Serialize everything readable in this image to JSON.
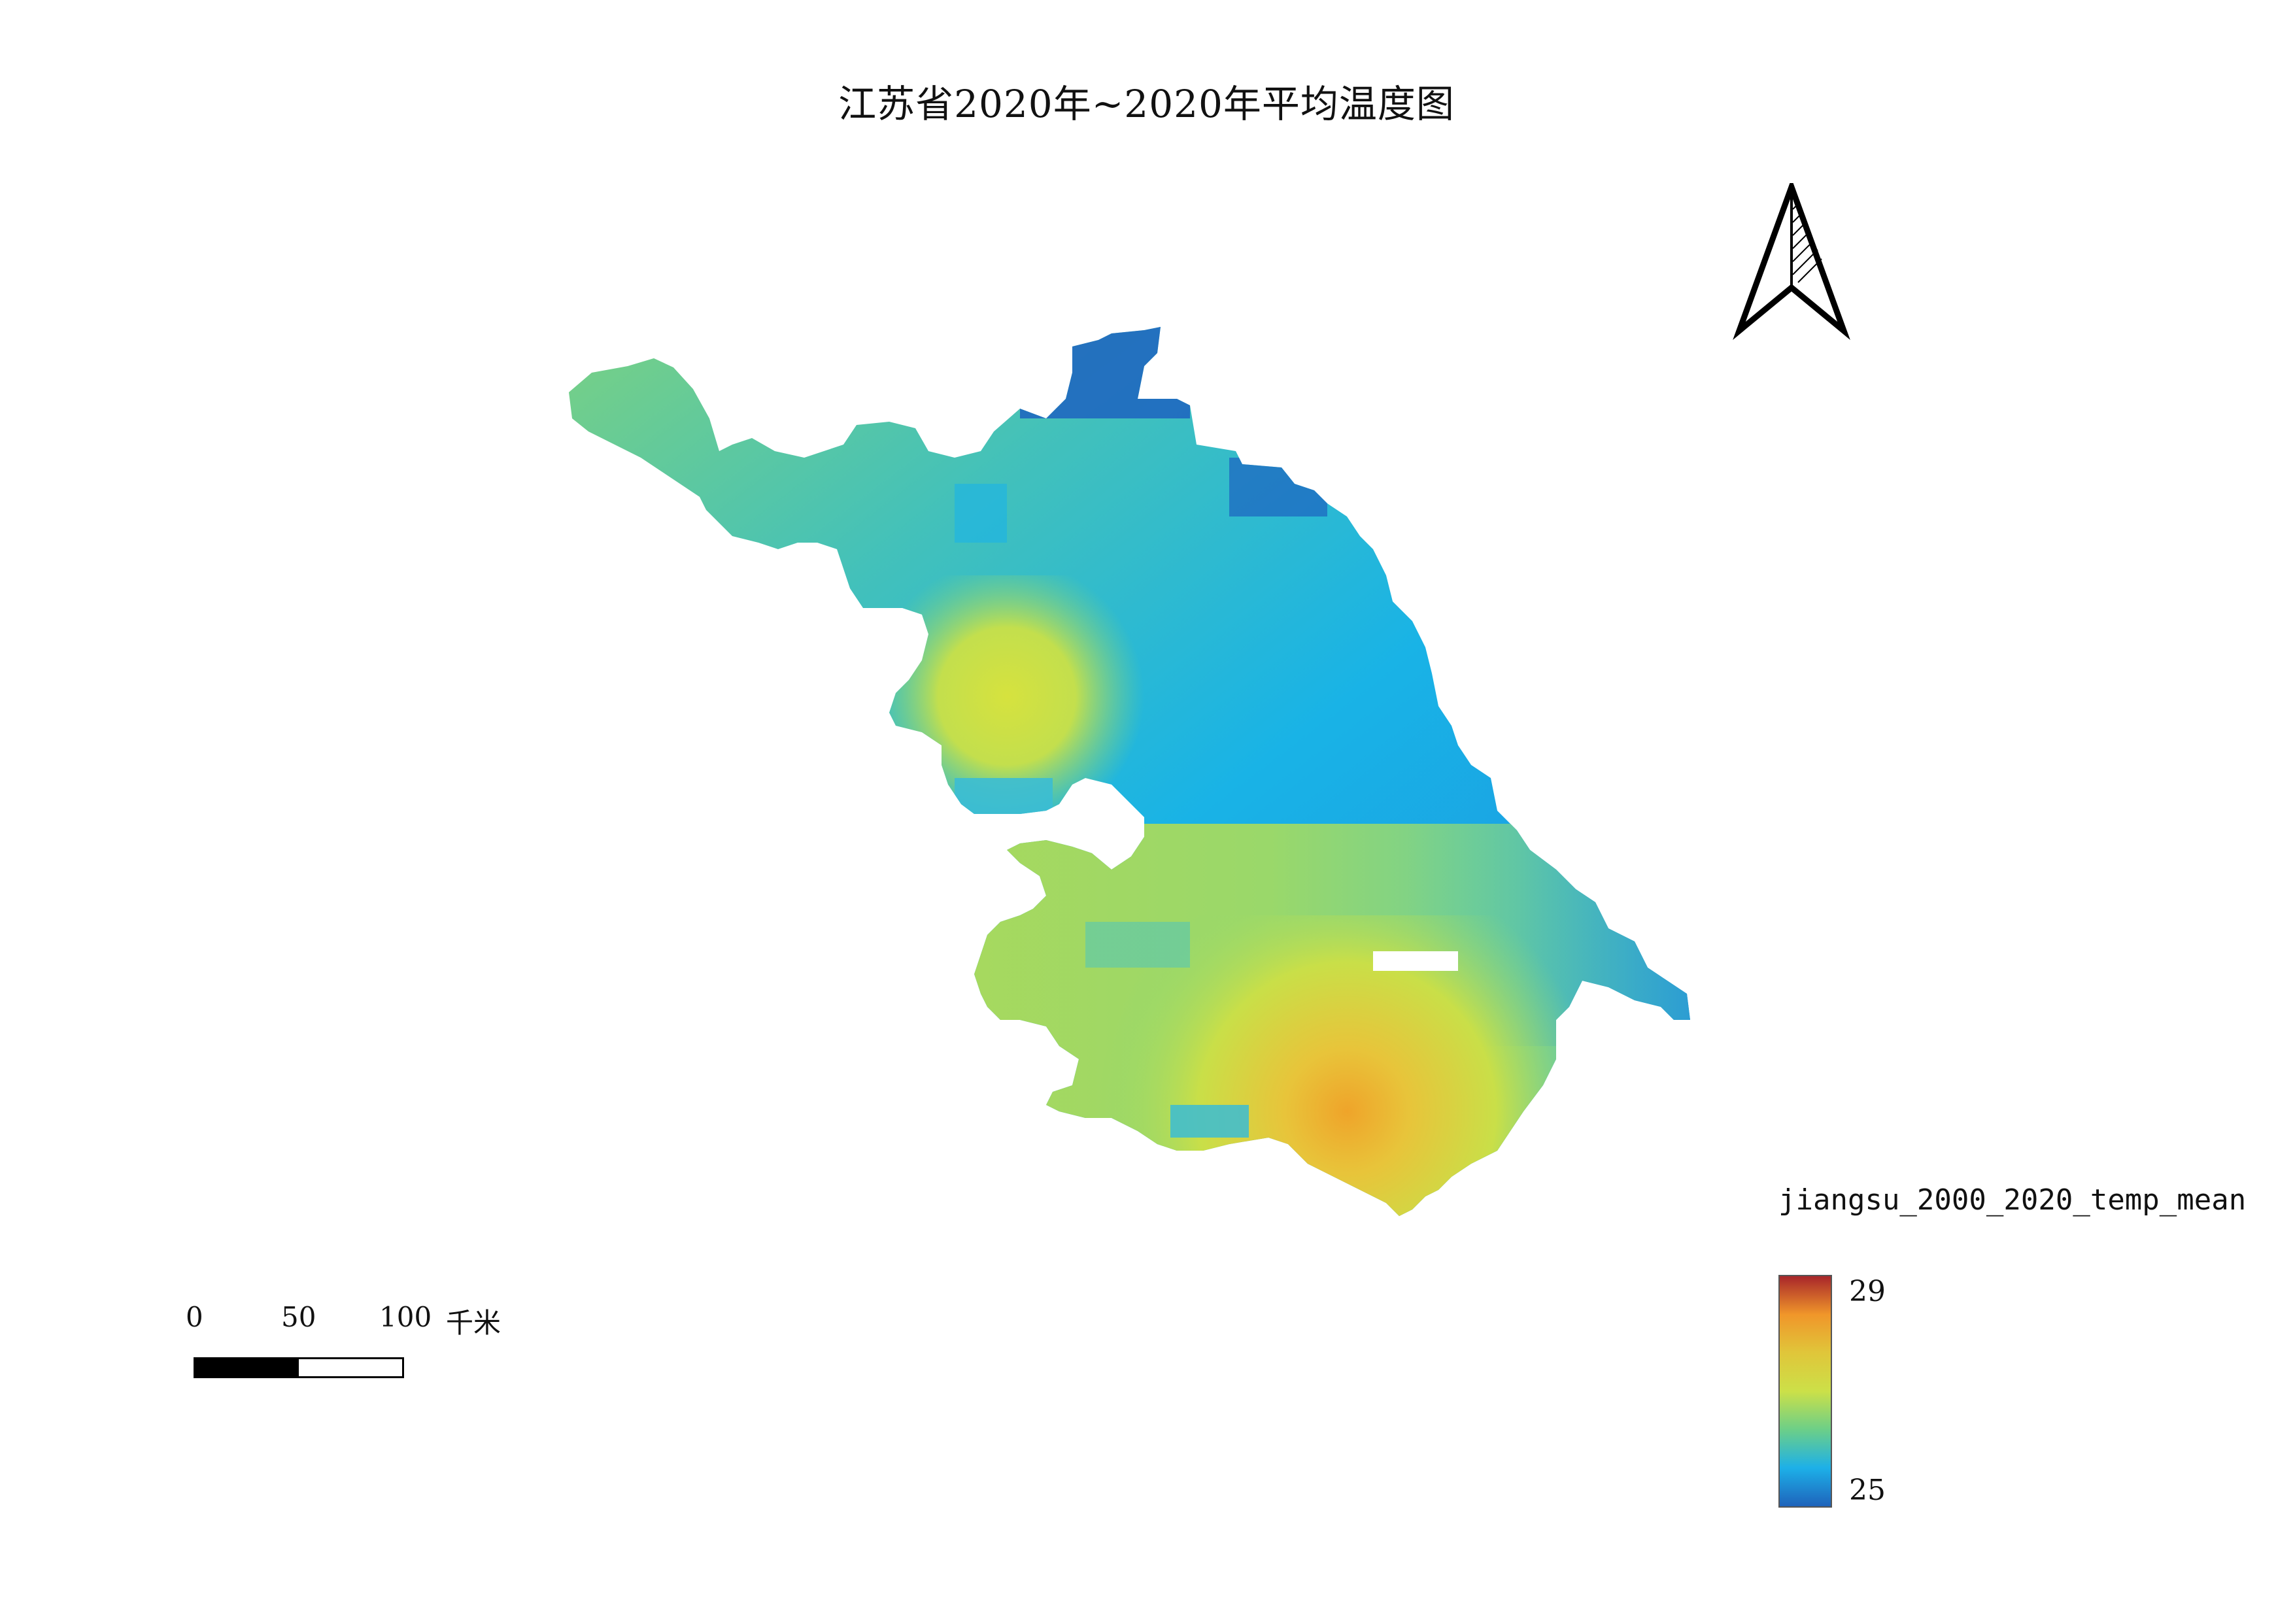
{
  "map": {
    "title": "江苏省2020年~2020年平均温度图",
    "scale_bar": {
      "labels": [
        "0",
        "50",
        "100"
      ],
      "unit": "千米"
    },
    "legend": {
      "title": "jiangsu_2000_2020_temp_mean",
      "max_label": "29",
      "min_label": "25",
      "colors": [
        "#a8262a",
        "#f0962a",
        "#e0c63a",
        "#cce048",
        "#6ccf88",
        "#1db0e8",
        "#1e63bb"
      ]
    },
    "north_arrow": "north-arrow-icon"
  }
}
